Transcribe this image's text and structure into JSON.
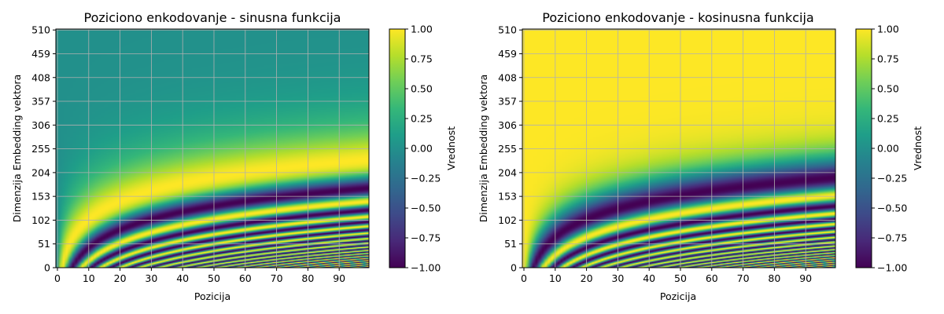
{
  "chart_data": [
    {
      "type": "heatmap",
      "title": "Poziciono enkodovanje - sinusna funkcija",
      "xlabel": "Pozicija",
      "ylabel": "Dimenzija Embedding vektora",
      "function": "sin",
      "positions": 100,
      "dimensions": 512,
      "xlim": [
        0,
        99
      ],
      "ylim": [
        0,
        511
      ],
      "xticks": [
        0,
        10,
        20,
        30,
        40,
        50,
        60,
        70,
        80,
        90
      ],
      "yticks": [
        0,
        51,
        102,
        153,
        204,
        255,
        306,
        357,
        408,
        459,
        510
      ],
      "grid": true,
      "colormap": "viridis",
      "colorbar": {
        "label": "Vrednost",
        "min": -1.0,
        "max": 1.0,
        "ticks": [
          "−1.00",
          "−0.75",
          "−0.50",
          "−0.25",
          "0.00",
          "0.25",
          "0.50",
          "0.75",
          "1.00"
        ]
      }
    },
    {
      "type": "heatmap",
      "title": "Poziciono enkodovanje - kosinusna funkcija",
      "xlabel": "Pozicija",
      "ylabel": "Dimenzija Embedding vektora",
      "function": "cos",
      "positions": 100,
      "dimensions": 512,
      "xlim": [
        0,
        99
      ],
      "ylim": [
        0,
        511
      ],
      "xticks": [
        0,
        10,
        20,
        30,
        40,
        50,
        60,
        70,
        80,
        90
      ],
      "yticks": [
        0,
        51,
        102,
        153,
        204,
        255,
        306,
        357,
        408,
        459,
        510
      ],
      "grid": true,
      "colormap": "viridis",
      "colorbar": {
        "label": "Vrednost",
        "min": -1.0,
        "max": 1.0,
        "ticks": [
          "−1.00",
          "−0.75",
          "−0.50",
          "−0.25",
          "0.00",
          "0.25",
          "0.50",
          "0.75",
          "1.00"
        ]
      }
    }
  ]
}
